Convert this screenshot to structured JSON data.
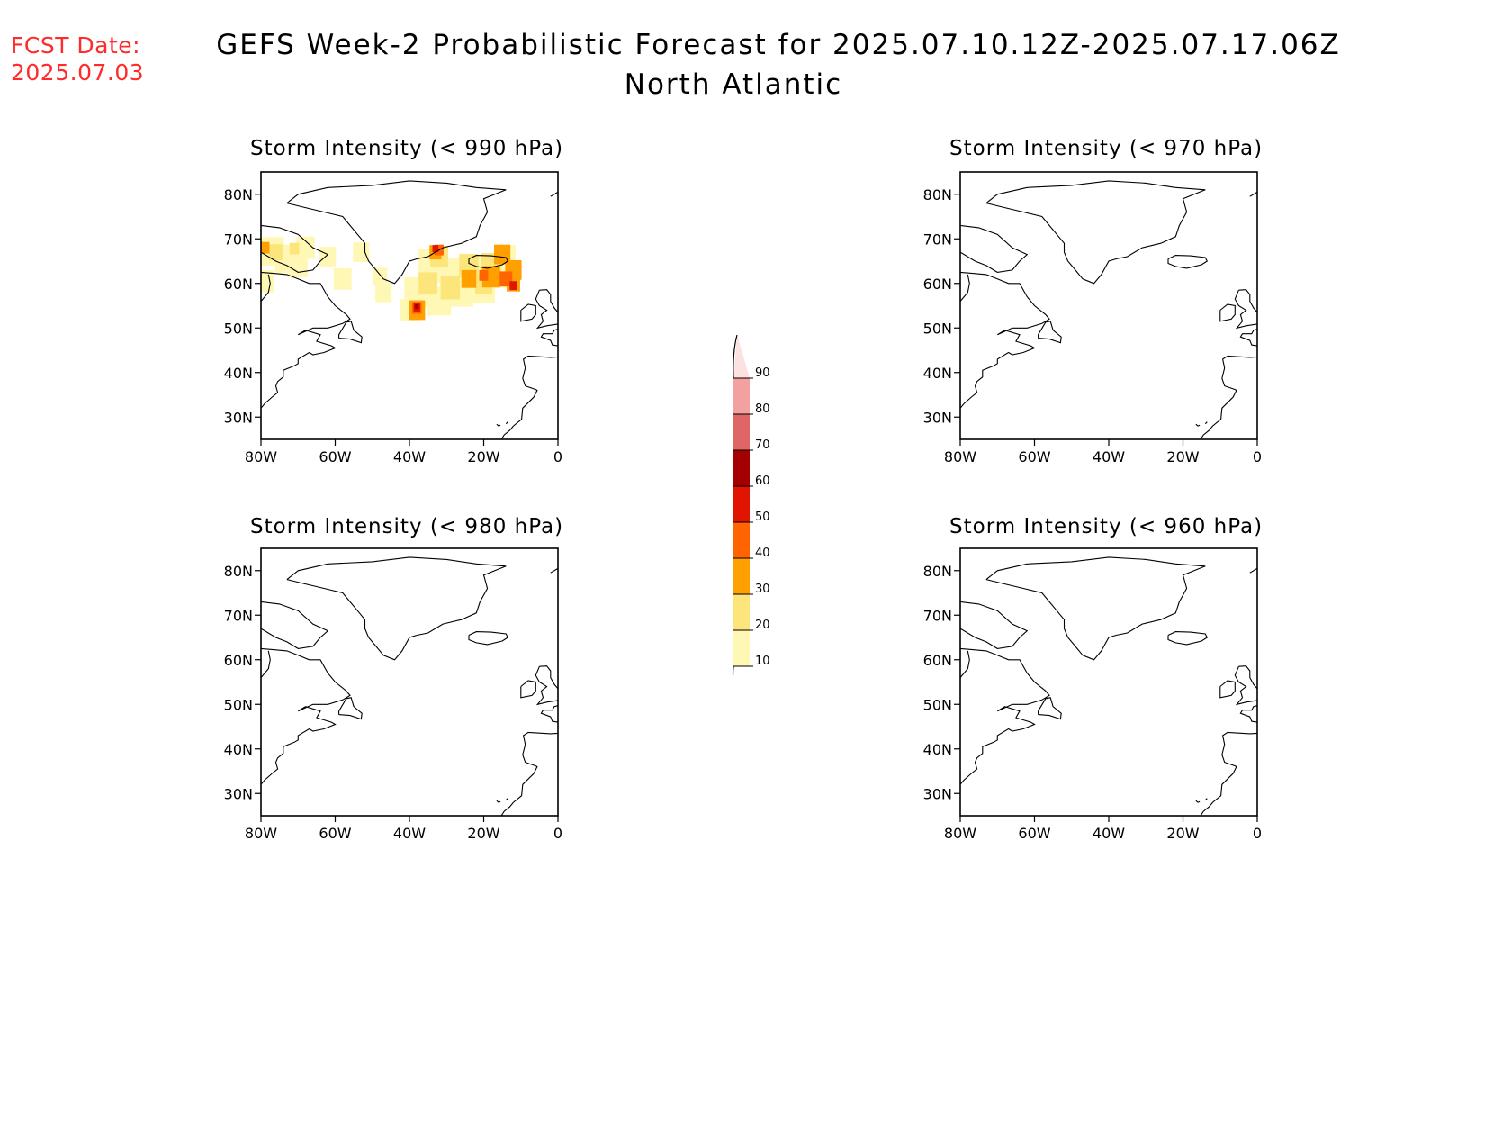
{
  "header": {
    "fcst_label": "FCST Date:",
    "fcst_date": "2025.07.03",
    "title": "GEFS Week-2 Probabilistic Forecast for 2025.07.10.12Z-2025.07.17.06Z",
    "subtitle": "North Atlantic"
  },
  "axes": {
    "lat_labels": [
      "80N",
      "70N",
      "60N",
      "50N",
      "40N",
      "30N"
    ],
    "lon_labels": [
      "80W",
      "60W",
      "40W",
      "20W",
      "0"
    ]
  },
  "panels": [
    {
      "title": "Storm Intensity (< 990 hPa)",
      "has_data": true
    },
    {
      "title": "Storm Intensity (< 970 hPa)",
      "has_data": false
    },
    {
      "title": "Storm Intensity (< 980 hPa)",
      "has_data": false
    },
    {
      "title": "Storm Intensity (< 960 hPa)",
      "has_data": false
    }
  ],
  "colorbar": {
    "levels": [
      "10",
      "20",
      "30",
      "40",
      "50",
      "60",
      "70",
      "80",
      "90"
    ],
    "colors": [
      "#fff8b4",
      "#fce57a",
      "#ffa000",
      "#ff6400",
      "#e11400",
      "#a50000",
      "#e06565",
      "#f2a0a0",
      "#fde0e0"
    ]
  }
}
